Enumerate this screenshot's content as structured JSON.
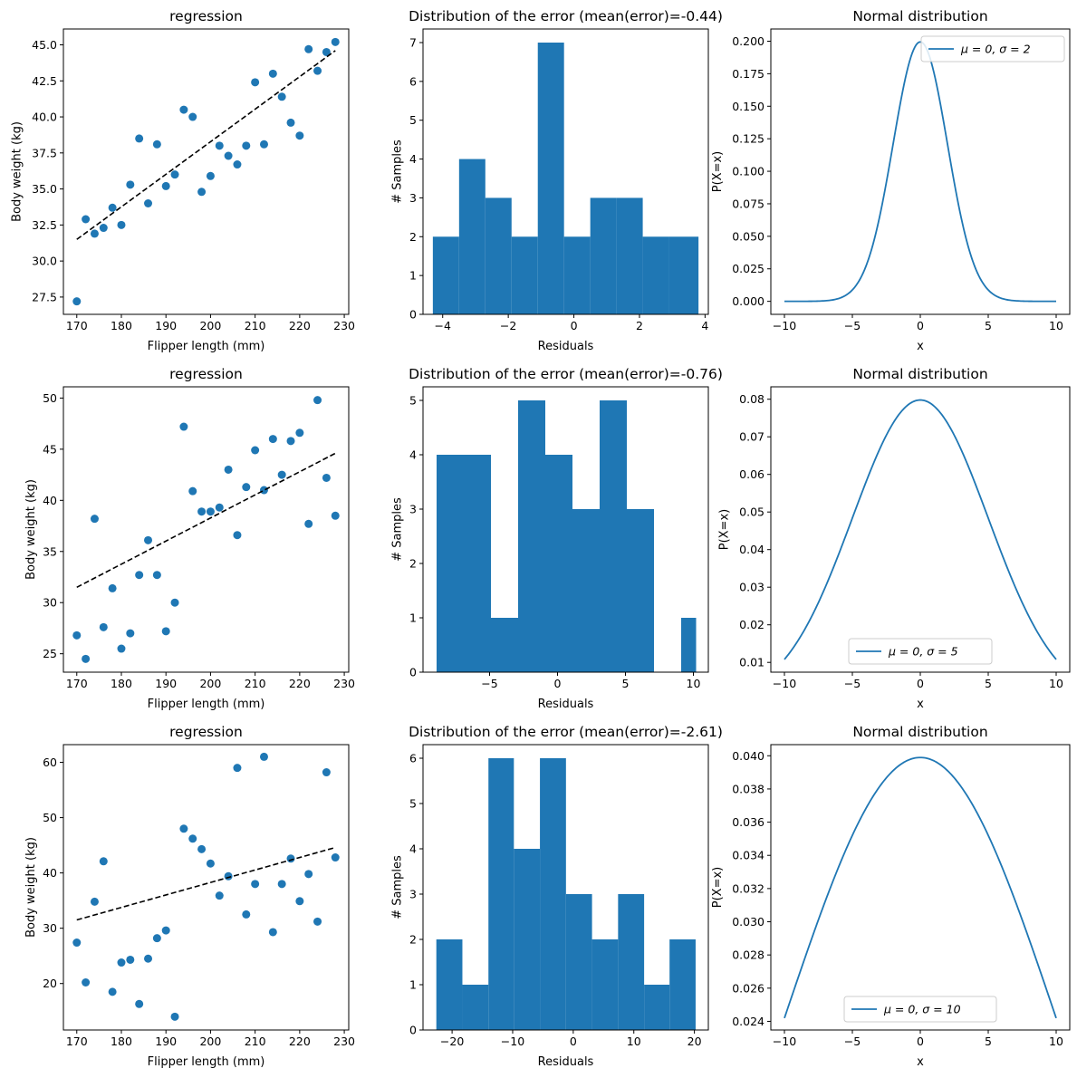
{
  "colors": {
    "primary": "#1f77b4",
    "fit_line": "#000000",
    "axes": "#000000"
  },
  "chart_data": [
    {
      "id": "reg-1",
      "type": "scatter",
      "title": "regression",
      "xlabel": "Flipper length (mm)",
      "ylabel": "Body weight (kg)",
      "xlim": [
        167,
        231
      ],
      "ylim": [
        26.3,
        46.1
      ],
      "xticks": [
        170,
        180,
        190,
        200,
        210,
        220,
        230
      ],
      "yticks": [
        27.5,
        30.0,
        32.5,
        35.0,
        37.5,
        40.0,
        42.5,
        45.0
      ],
      "ytick_decimals": 1,
      "points": [
        [
          170,
          27.2
        ],
        [
          172,
          32.9
        ],
        [
          174,
          31.9
        ],
        [
          176,
          32.3
        ],
        [
          178,
          33.7
        ],
        [
          180,
          32.5
        ],
        [
          182,
          35.3
        ],
        [
          184,
          38.5
        ],
        [
          186,
          34.0
        ],
        [
          188,
          38.1
        ],
        [
          190,
          35.2
        ],
        [
          192,
          36.0
        ],
        [
          194,
          40.5
        ],
        [
          196,
          40.0
        ],
        [
          198,
          34.8
        ],
        [
          200,
          35.9
        ],
        [
          202,
          38.0
        ],
        [
          204,
          37.3
        ],
        [
          206,
          36.7
        ],
        [
          208,
          38.0
        ],
        [
          210,
          42.4
        ],
        [
          212,
          38.1
        ],
        [
          214,
          43.0
        ],
        [
          216,
          41.4
        ],
        [
          218,
          39.6
        ],
        [
          220,
          38.7
        ],
        [
          222,
          44.7
        ],
        [
          224,
          43.2
        ],
        [
          226,
          44.5
        ],
        [
          228,
          45.2
        ]
      ],
      "fit_line": [
        [
          170,
          31.5
        ],
        [
          228,
          44.6
        ]
      ]
    },
    {
      "id": "hist-1",
      "type": "bar",
      "title": "Distribution of the error (mean(error)=-0.44)",
      "xlabel": "Residuals",
      "ylabel": "# Samples",
      "xlim": [
        -4.6,
        4.1
      ],
      "ylim": [
        0,
        7.35
      ],
      "xticks": [
        -4,
        -2,
        0,
        2,
        4
      ],
      "yticks": [
        0,
        1,
        2,
        3,
        4,
        5,
        6,
        7
      ],
      "bin_edges": [
        -4.3,
        -3.5,
        -2.7,
        -1.9,
        -1.1,
        -0.3,
        0.5,
        1.3,
        2.1,
        2.9,
        3.8
      ],
      "values": [
        2,
        4,
        3,
        2,
        7,
        2,
        3,
        3,
        2,
        2
      ]
    },
    {
      "id": "norm-1",
      "type": "line",
      "title": "Normal distribution",
      "xlabel": "x",
      "ylabel": "P(X=x)",
      "xlim": [
        -11,
        11
      ],
      "ylim": [
        -0.01,
        0.2094
      ],
      "xticks": [
        -10,
        -5,
        0,
        5,
        10
      ],
      "yticks": [
        0.0,
        0.025,
        0.05,
        0.075,
        0.1,
        0.125,
        0.15,
        0.175,
        0.2
      ],
      "ytick_decimals": 3,
      "mu": 0,
      "sigma": 2,
      "x_range": [
        -10,
        10
      ],
      "legend": "μ = 0, σ = 2",
      "legend_loc": "upper right"
    },
    {
      "id": "reg-2",
      "type": "scatter",
      "title": "regression",
      "xlabel": "Flipper length (mm)",
      "ylabel": "Body weight (kg)",
      "xlim": [
        167,
        231
      ],
      "ylim": [
        23.2,
        51.1
      ],
      "xticks": [
        170,
        180,
        190,
        200,
        210,
        220,
        230
      ],
      "yticks": [
        25,
        30,
        35,
        40,
        45,
        50
      ],
      "ytick_decimals": 0,
      "points": [
        [
          170,
          26.8
        ],
        [
          172,
          24.5
        ],
        [
          174,
          38.2
        ],
        [
          176,
          27.6
        ],
        [
          178,
          31.4
        ],
        [
          180,
          25.5
        ],
        [
          182,
          27.0
        ],
        [
          184,
          32.7
        ],
        [
          186,
          36.1
        ],
        [
          188,
          32.7
        ],
        [
          190,
          27.2
        ],
        [
          192,
          30.0
        ],
        [
          194,
          47.2
        ],
        [
          196,
          40.9
        ],
        [
          198,
          38.9
        ],
        [
          200,
          38.9
        ],
        [
          202,
          39.3
        ],
        [
          204,
          43.0
        ],
        [
          206,
          36.6
        ],
        [
          208,
          41.3
        ],
        [
          210,
          44.9
        ],
        [
          212,
          41.0
        ],
        [
          214,
          46.0
        ],
        [
          216,
          42.5
        ],
        [
          218,
          45.8
        ],
        [
          220,
          46.6
        ],
        [
          222,
          37.7
        ],
        [
          224,
          49.8
        ],
        [
          226,
          42.2
        ],
        [
          228,
          38.5
        ]
      ],
      "fit_line": [
        [
          170,
          31.5
        ],
        [
          228,
          44.6
        ]
      ]
    },
    {
      "id": "hist-2",
      "type": "bar",
      "title": "Distribution of the error (mean(error)=-0.76)",
      "xlabel": "Residuals",
      "ylabel": "# Samples",
      "xlim": [
        -9.9,
        11.1
      ],
      "ylim": [
        0,
        5.25
      ],
      "xticks": [
        -5,
        0,
        5,
        10
      ],
      "yticks": [
        0,
        1,
        2,
        3,
        4,
        5
      ],
      "bin_edges": [
        -8.9,
        -6.9,
        -4.9,
        -2.9,
        -0.9,
        1.1,
        3.1,
        5.1,
        7.1,
        9.1,
        10.2
      ],
      "values": [
        4,
        4,
        1,
        5,
        4,
        3,
        5,
        3,
        0,
        1
      ],
      "bin_edges_note": "fixed"
    },
    {
      "id": "norm-2",
      "type": "line",
      "title": "Normal distribution",
      "xlabel": "x",
      "ylabel": "P(X=x)",
      "xlim": [
        -11,
        11
      ],
      "ylim": [
        0.0074,
        0.0833
      ],
      "xticks": [
        -10,
        -5,
        0,
        5,
        10
      ],
      "yticks": [
        0.01,
        0.02,
        0.03,
        0.04,
        0.05,
        0.06,
        0.07,
        0.08
      ],
      "ytick_decimals": 2,
      "mu": 0,
      "sigma": 5,
      "x_range": [
        -10,
        10
      ],
      "legend": "μ = 0, σ = 5",
      "legend_loc": "lower center"
    },
    {
      "id": "reg-3",
      "type": "scatter",
      "title": "regression",
      "xlabel": "Flipper length (mm)",
      "ylabel": "Body weight (kg)",
      "xlim": [
        167,
        231
      ],
      "ylim": [
        11.6,
        63.2
      ],
      "xticks": [
        170,
        180,
        190,
        200,
        210,
        220,
        230
      ],
      "yticks": [
        20,
        30,
        40,
        50,
        60
      ],
      "ytick_decimals": 0,
      "points": [
        [
          170,
          27.4
        ],
        [
          172,
          20.2
        ],
        [
          174,
          34.8
        ],
        [
          176,
          42.1
        ],
        [
          178,
          18.5
        ],
        [
          180,
          23.8
        ],
        [
          182,
          24.3
        ],
        [
          184,
          16.3
        ],
        [
          186,
          24.5
        ],
        [
          188,
          28.2
        ],
        [
          190,
          29.6
        ],
        [
          192,
          14.0
        ],
        [
          194,
          48.0
        ],
        [
          196,
          46.2
        ],
        [
          198,
          44.3
        ],
        [
          200,
          41.7
        ],
        [
          202,
          35.9
        ],
        [
          204,
          39.4
        ],
        [
          206,
          59.0
        ],
        [
          208,
          32.5
        ],
        [
          210,
          38.0
        ],
        [
          212,
          61.0
        ],
        [
          214,
          29.3
        ],
        [
          216,
          38.0
        ],
        [
          218,
          42.6
        ],
        [
          220,
          34.9
        ],
        [
          222,
          39.8
        ],
        [
          224,
          31.2
        ],
        [
          226,
          58.2
        ],
        [
          228,
          42.8
        ]
      ],
      "fit_line": [
        [
          170,
          31.5
        ],
        [
          228,
          44.6
        ]
      ]
    },
    {
      "id": "hist-3",
      "type": "bar",
      "title": "Distribution of the error (mean(error)=-2.61)",
      "xlabel": "Residuals",
      "ylabel": "# Samples",
      "xlim": [
        -24.8,
        22.3
      ],
      "ylim": [
        0,
        6.3
      ],
      "xticks": [
        -20,
        -10,
        0,
        10,
        20
      ],
      "yticks": [
        0,
        1,
        2,
        3,
        4,
        5,
        6
      ],
      "bin_edges": [
        -22.6,
        -18.3,
        -14.0,
        -9.8,
        -5.5,
        -1.2,
        3.1,
        7.4,
        11.7,
        15.9,
        20.2
      ],
      "values": [
        2,
        1,
        6,
        4,
        6,
        3,
        2,
        3,
        1,
        2
      ]
    },
    {
      "id": "norm-3",
      "type": "line",
      "title": "Normal distribution",
      "xlabel": "x",
      "ylabel": "P(X=x)",
      "xlim": [
        -11,
        11
      ],
      "ylim": [
        0.02348,
        0.04067
      ],
      "xticks": [
        -10,
        -5,
        0,
        5,
        10
      ],
      "yticks": [
        0.024,
        0.026,
        0.028,
        0.03,
        0.032,
        0.034,
        0.036,
        0.038,
        0.04
      ],
      "ytick_decimals": 3,
      "mu": 0,
      "sigma": 10,
      "x_range": [
        -10,
        10
      ],
      "legend": "μ = 0, σ = 10",
      "legend_loc": "lower center"
    }
  ]
}
